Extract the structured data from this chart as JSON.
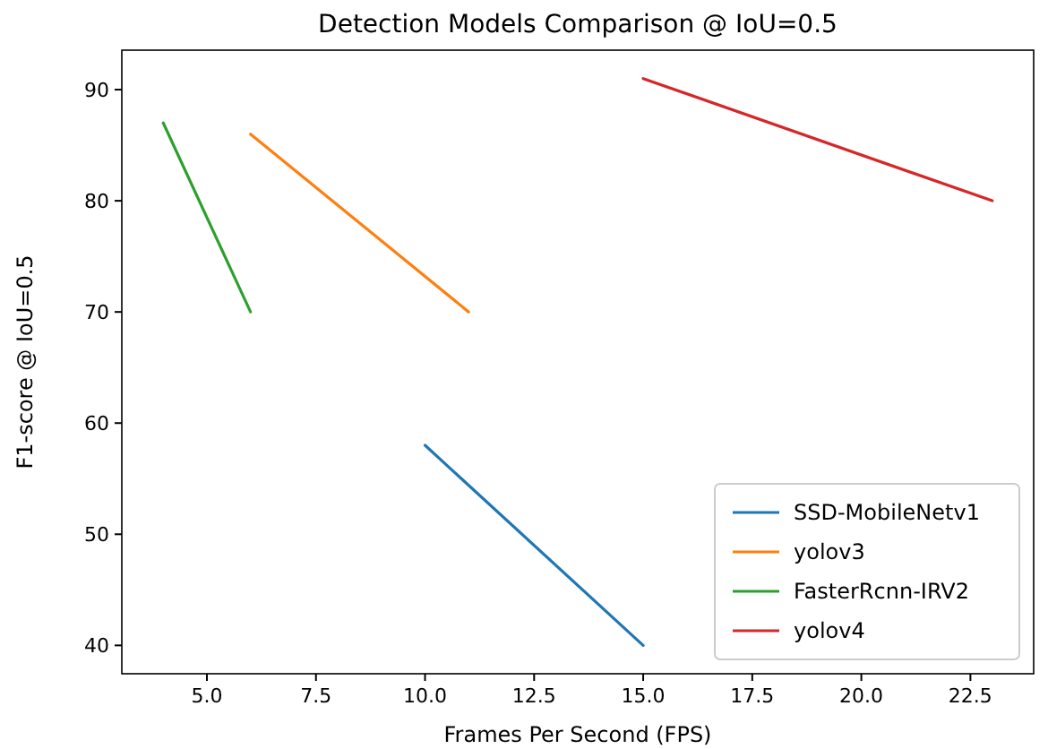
{
  "chart_data": {
    "type": "line",
    "title": "Detection Models Comparison @ IoU=0.5",
    "xlabel": "Frames Per Second (FPS)",
    "ylabel": "F1-score @ IoU=0.5",
    "xlim": [
      3.05,
      23.95
    ],
    "xticks": [
      {
        "value": 5,
        "label": "5.0"
      },
      {
        "value": 7.5,
        "label": "7.5"
      },
      {
        "value": 10,
        "label": "10.0"
      },
      {
        "value": 12.5,
        "label": "12.5"
      },
      {
        "value": 15,
        "label": "15.0"
      },
      {
        "value": 17.5,
        "label": "17.5"
      },
      {
        "value": 20,
        "label": "20.0"
      },
      {
        "value": 22.5,
        "label": "22.5"
      }
    ],
    "ylim": [
      37.45,
      93.55
    ],
    "yticks": [
      40,
      50,
      60,
      70,
      80,
      90
    ],
    "grid": false,
    "legend": "bottom right",
    "marker": "none",
    "line_style": "solid",
    "series": [
      {
        "name": "SSD-MobileNetv1",
        "color": "#1f77b4",
        "x": [
          10,
          15
        ],
        "values": [
          58,
          40
        ]
      },
      {
        "name": "yolov3",
        "color": "#ff7f0e",
        "x": [
          6,
          11
        ],
        "values": [
          86,
          70
        ]
      },
      {
        "name": "FasterRcnn-IRV2",
        "color": "#2ca02c",
        "x": [
          4,
          6
        ],
        "values": [
          87,
          70
        ]
      },
      {
        "name": "yolov4",
        "color": "#d62728",
        "x": [
          15,
          23
        ],
        "values": [
          91,
          80
        ]
      }
    ]
  }
}
